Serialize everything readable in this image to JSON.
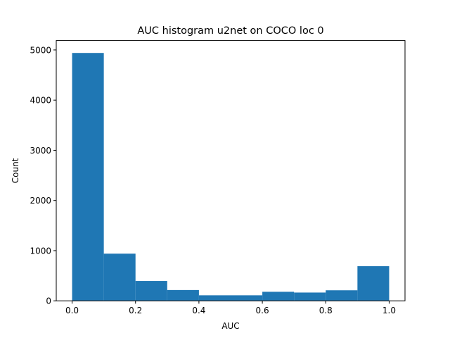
{
  "chart_data": {
    "type": "bar",
    "title": "AUC histogram u2net on COCO loc 0",
    "xlabel": "AUC",
    "ylabel": "Count",
    "bins": [
      {
        "start": 0.0,
        "end": 0.1,
        "value": 4940
      },
      {
        "start": 0.1,
        "end": 0.2,
        "value": 940
      },
      {
        "start": 0.2,
        "end": 0.3,
        "value": 395
      },
      {
        "start": 0.3,
        "end": 0.4,
        "value": 215
      },
      {
        "start": 0.4,
        "end": 0.5,
        "value": 110
      },
      {
        "start": 0.5,
        "end": 0.6,
        "value": 110
      },
      {
        "start": 0.6,
        "end": 0.7,
        "value": 180
      },
      {
        "start": 0.7,
        "end": 0.8,
        "value": 165
      },
      {
        "start": 0.8,
        "end": 0.9,
        "value": 210
      },
      {
        "start": 0.9,
        "end": 1.0,
        "value": 690
      }
    ],
    "xlim": [
      -0.05,
      1.05
    ],
    "ylim": [
      0,
      5187
    ],
    "xticks": [
      "0.0",
      "0.2",
      "0.4",
      "0.6",
      "0.8",
      "1.0"
    ],
    "yticks": [
      "0",
      "1000",
      "2000",
      "3000",
      "4000",
      "5000"
    ],
    "bar_color": "#1f77b4",
    "grid": false,
    "legend": "none"
  }
}
